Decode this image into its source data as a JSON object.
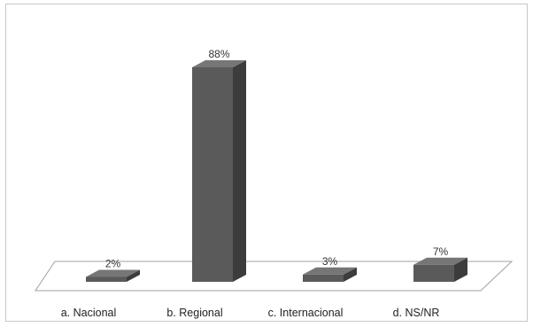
{
  "chart_data": {
    "type": "bar",
    "style": "3d-column",
    "categories": [
      "a. Nacional",
      "b. Regional",
      "c. Internacional",
      "d. NS/NR"
    ],
    "values": [
      2,
      88,
      3,
      7
    ],
    "data_labels": [
      "2%",
      "88%",
      "3%",
      "7%"
    ],
    "ylim": [
      0,
      100
    ],
    "grid": false,
    "legend": "none",
    "colors": {
      "bar_front": "#5a5a5a",
      "bar_side": "#3c3c3c",
      "bar_top": "#767676",
      "floor_stroke": "#9a9a9a"
    }
  }
}
